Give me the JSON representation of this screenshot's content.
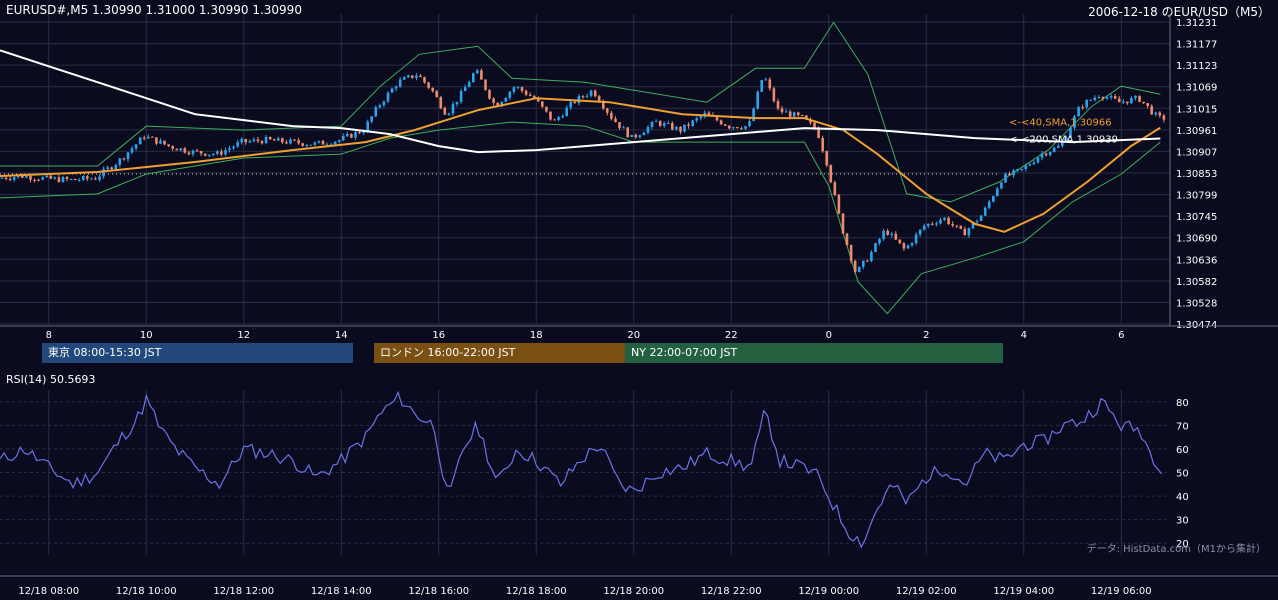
{
  "header": {
    "symbol_line": "EURUSD#,M5 1.30990 1.31000 1.30990 1.30990",
    "date_pair": "2006-12-18 のEUR/USD（M5）"
  },
  "sessions": [
    {
      "label": "東京 08:00-15:30 JST"
    },
    {
      "label": "ロンドン 16:00-22:00 JST"
    },
    {
      "label": "NY 22:00-07:00 JST"
    }
  ],
  "rsi_panel": {
    "label": "RSI(14) 50.5693"
  },
  "credit": "データ: HistData.com（M1から集計）",
  "colors": {
    "background": "#0a0b1e",
    "bull": "#2aa3f0",
    "bear": "#ef8a6c",
    "sma40": "#f0a030",
    "sma200": "#ffffff",
    "bollinger": "#3fae5a",
    "rsi": "#6b73e8",
    "grid": "#2a2d45"
  },
  "chart_data": [
    {
      "type": "candlestick",
      "title": "",
      "y_ticks": [
        "1.31231",
        "1.31177",
        "1.31123",
        "1.31069",
        "1.31015",
        "1.30961",
        "1.30907",
        "1.30853",
        "1.30799",
        "1.30745",
        "1.30690",
        "1.30636",
        "1.30582",
        "1.30528",
        "1.30474"
      ],
      "ylim": [
        1.30474,
        1.31231
      ],
      "x_ticks": [
        "8",
        "10",
        "12",
        "14",
        "16",
        "18",
        "20",
        "22",
        "0",
        "2",
        "4",
        "6"
      ],
      "x_tick_hours": [
        8,
        10,
        12,
        14,
        16,
        18,
        20,
        22,
        24,
        26,
        28,
        30
      ],
      "x_range_hours": [
        7.0,
        31.0
      ],
      "reference_level": 1.3085,
      "close_path": [
        {
          "h": 7.0,
          "v": 1.3084
        },
        {
          "h": 7.5,
          "v": 1.30845
        },
        {
          "h": 8.0,
          "v": 1.30838
        },
        {
          "h": 8.5,
          "v": 1.30835
        },
        {
          "h": 9.0,
          "v": 1.3084
        },
        {
          "h": 9.5,
          "v": 1.30885
        },
        {
          "h": 10.0,
          "v": 1.30945
        },
        {
          "h": 10.5,
          "v": 1.3092
        },
        {
          "h": 11.0,
          "v": 1.30905
        },
        {
          "h": 11.5,
          "v": 1.309
        },
        {
          "h": 12.0,
          "v": 1.3093
        },
        {
          "h": 12.5,
          "v": 1.30935
        },
        {
          "h": 13.0,
          "v": 1.3093
        },
        {
          "h": 13.5,
          "v": 1.30925
        },
        {
          "h": 14.0,
          "v": 1.30935
        },
        {
          "h": 14.5,
          "v": 1.3096
        },
        {
          "h": 14.8,
          "v": 1.3102
        },
        {
          "h": 15.2,
          "v": 1.3108
        },
        {
          "h": 15.6,
          "v": 1.311
        },
        {
          "h": 15.9,
          "v": 1.3106
        },
        {
          "h": 16.2,
          "v": 1.31
        },
        {
          "h": 16.5,
          "v": 1.3105
        },
        {
          "h": 16.8,
          "v": 1.3111
        },
        {
          "h": 17.2,
          "v": 1.3102
        },
        {
          "h": 17.6,
          "v": 1.3107
        },
        {
          "h": 18.0,
          "v": 1.3104
        },
        {
          "h": 18.4,
          "v": 1.3098
        },
        {
          "h": 18.8,
          "v": 1.3103
        },
        {
          "h": 19.2,
          "v": 1.3106
        },
        {
          "h": 19.6,
          "v": 1.3099
        },
        {
          "h": 20.0,
          "v": 1.3094
        },
        {
          "h": 20.5,
          "v": 1.3098
        },
        {
          "h": 21.0,
          "v": 1.3096
        },
        {
          "h": 21.5,
          "v": 1.31
        },
        {
          "h": 22.0,
          "v": 1.3097
        },
        {
          "h": 22.4,
          "v": 1.3097
        },
        {
          "h": 22.7,
          "v": 1.311
        },
        {
          "h": 23.0,
          "v": 1.3101
        },
        {
          "h": 23.5,
          "v": 1.3099
        },
        {
          "h": 23.8,
          "v": 1.3096
        },
        {
          "h": 24.0,
          "v": 1.3088
        },
        {
          "h": 24.3,
          "v": 1.3072
        },
        {
          "h": 24.6,
          "v": 1.306
        },
        {
          "h": 24.9,
          "v": 1.3065
        },
        {
          "h": 25.2,
          "v": 1.3071
        },
        {
          "h": 25.6,
          "v": 1.3066
        },
        {
          "h": 26.0,
          "v": 1.3072
        },
        {
          "h": 26.4,
          "v": 1.3074
        },
        {
          "h": 26.8,
          "v": 1.307
        },
        {
          "h": 27.2,
          "v": 1.3075
        },
        {
          "h": 27.6,
          "v": 1.3084
        },
        {
          "h": 28.0,
          "v": 1.3086
        },
        {
          "h": 28.4,
          "v": 1.309
        },
        {
          "h": 28.8,
          "v": 1.3092
        },
        {
          "h": 29.2,
          "v": 1.3102
        },
        {
          "h": 29.6,
          "v": 1.3105
        },
        {
          "h": 30.0,
          "v": 1.3103
        },
        {
          "h": 30.4,
          "v": 1.3104
        },
        {
          "h": 30.8,
          "v": 1.3099
        }
      ],
      "series": [
        {
          "name": "<-<40,SMA,1.30966",
          "points": [
            {
              "h": 7.0,
              "v": 1.30845
            },
            {
              "h": 9.0,
              "v": 1.30855
            },
            {
              "h": 11.0,
              "v": 1.3088
            },
            {
              "h": 13.0,
              "v": 1.3091
            },
            {
              "h": 14.5,
              "v": 1.3093
            },
            {
              "h": 15.5,
              "v": 1.3096
            },
            {
              "h": 16.8,
              "v": 1.3101
            },
            {
              "h": 18.0,
              "v": 1.3104
            },
            {
              "h": 19.5,
              "v": 1.3103
            },
            {
              "h": 21.0,
              "v": 1.31
            },
            {
              "h": 22.5,
              "v": 1.3099
            },
            {
              "h": 23.5,
              "v": 1.3099
            },
            {
              "h": 24.3,
              "v": 1.3096
            },
            {
              "h": 25.0,
              "v": 1.309
            },
            {
              "h": 26.0,
              "v": 1.308
            },
            {
              "h": 27.0,
              "v": 1.30725
            },
            {
              "h": 27.6,
              "v": 1.30705
            },
            {
              "h": 28.4,
              "v": 1.3075
            },
            {
              "h": 29.3,
              "v": 1.3083
            },
            {
              "h": 30.2,
              "v": 1.3092
            },
            {
              "h": 30.8,
              "v": 1.30966
            }
          ]
        },
        {
          "name": "<-<200,SMA,1.30939",
          "points": [
            {
              "h": 7.0,
              "v": 1.3116
            },
            {
              "h": 8.0,
              "v": 1.3112
            },
            {
              "h": 9.0,
              "v": 1.3108
            },
            {
              "h": 10.0,
              "v": 1.3104
            },
            {
              "h": 11.0,
              "v": 1.31
            },
            {
              "h": 12.0,
              "v": 1.30985
            },
            {
              "h": 13.0,
              "v": 1.3097
            },
            {
              "h": 14.0,
              "v": 1.30965
            },
            {
              "h": 15.0,
              "v": 1.3095
            },
            {
              "h": 16.0,
              "v": 1.3092
            },
            {
              "h": 16.8,
              "v": 1.30905
            },
            {
              "h": 18.0,
              "v": 1.3091
            },
            {
              "h": 20.0,
              "v": 1.3093
            },
            {
              "h": 22.0,
              "v": 1.3095
            },
            {
              "h": 23.5,
              "v": 1.30965
            },
            {
              "h": 25.0,
              "v": 1.3096
            },
            {
              "h": 27.0,
              "v": 1.3094
            },
            {
              "h": 29.0,
              "v": 1.3093
            },
            {
              "h": 30.8,
              "v": 1.30939
            }
          ]
        },
        {
          "name": "",
          "points": [
            {
              "h": 7.0,
              "v": 1.3087
            },
            {
              "h": 9.0,
              "v": 1.3087
            },
            {
              "h": 10.0,
              "v": 1.3097
            },
            {
              "h": 12.0,
              "v": 1.3096
            },
            {
              "h": 14.0,
              "v": 1.3097
            },
            {
              "h": 14.8,
              "v": 1.3107
            },
            {
              "h": 15.6,
              "v": 1.3115
            },
            {
              "h": 16.8,
              "v": 1.3117
            },
            {
              "h": 17.5,
              "v": 1.3109
            },
            {
              "h": 19.0,
              "v": 1.3108
            },
            {
              "h": 20.0,
              "v": 1.3106
            },
            {
              "h": 21.5,
              "v": 1.3103
            },
            {
              "h": 22.5,
              "v": 1.31115
            },
            {
              "h": 23.5,
              "v": 1.31115
            },
            {
              "h": 24.1,
              "v": 1.3123
            },
            {
              "h": 24.8,
              "v": 1.311
            },
            {
              "h": 25.6,
              "v": 1.308
            },
            {
              "h": 26.5,
              "v": 1.3078
            },
            {
              "h": 27.5,
              "v": 1.3083
            },
            {
              "h": 28.5,
              "v": 1.3091
            },
            {
              "h": 29.4,
              "v": 1.3102
            },
            {
              "h": 30.0,
              "v": 1.3107
            },
            {
              "h": 30.8,
              "v": 1.3105
            }
          ]
        },
        {
          "name": "",
          "points": [
            {
              "h": 7.0,
              "v": 1.3079
            },
            {
              "h": 9.0,
              "v": 1.308
            },
            {
              "h": 10.0,
              "v": 1.3085
            },
            {
              "h": 12.0,
              "v": 1.3089
            },
            {
              "h": 14.0,
              "v": 1.309
            },
            {
              "h": 15.0,
              "v": 1.3094
            },
            {
              "h": 16.0,
              "v": 1.3096
            },
            {
              "h": 17.5,
              "v": 1.3098
            },
            {
              "h": 19.0,
              "v": 1.3097
            },
            {
              "h": 20.0,
              "v": 1.3093
            },
            {
              "h": 21.5,
              "v": 1.3093
            },
            {
              "h": 22.5,
              "v": 1.3093
            },
            {
              "h": 23.5,
              "v": 1.3093
            },
            {
              "h": 24.0,
              "v": 1.3082
            },
            {
              "h": 24.6,
              "v": 1.3058
            },
            {
              "h": 25.2,
              "v": 1.305
            },
            {
              "h": 25.9,
              "v": 1.306
            },
            {
              "h": 27.0,
              "v": 1.3064
            },
            {
              "h": 28.0,
              "v": 1.3068
            },
            {
              "h": 29.0,
              "v": 1.3078
            },
            {
              "h": 30.0,
              "v": 1.3085
            },
            {
              "h": 30.8,
              "v": 1.3093
            }
          ]
        }
      ]
    },
    {
      "type": "line",
      "title": "",
      "y_ticks": [
        "80",
        "70",
        "60",
        "50",
        "40",
        "30",
        "20"
      ],
      "ylim": [
        15,
        85
      ],
      "rsi_path": [
        {
          "h": 7.0,
          "v": 55
        },
        {
          "h": 7.5,
          "v": 60
        },
        {
          "h": 8.0,
          "v": 52
        },
        {
          "h": 8.5,
          "v": 45
        },
        {
          "h": 9.0,
          "v": 50
        },
        {
          "h": 9.5,
          "v": 65
        },
        {
          "h": 9.8,
          "v": 72
        },
        {
          "h": 10.0,
          "v": 81
        },
        {
          "h": 10.3,
          "v": 68
        },
        {
          "h": 10.6,
          "v": 60
        },
        {
          "h": 11.0,
          "v": 52
        },
        {
          "h": 11.5,
          "v": 45
        },
        {
          "h": 12.0,
          "v": 60
        },
        {
          "h": 12.5,
          "v": 58
        },
        {
          "h": 13.0,
          "v": 55
        },
        {
          "h": 13.5,
          "v": 48
        },
        {
          "h": 14.0,
          "v": 55
        },
        {
          "h": 14.5,
          "v": 65
        },
        {
          "h": 14.8,
          "v": 75
        },
        {
          "h": 15.2,
          "v": 82
        },
        {
          "h": 15.5,
          "v": 75
        },
        {
          "h": 15.9,
          "v": 70
        },
        {
          "h": 16.2,
          "v": 38
        },
        {
          "h": 16.5,
          "v": 60
        },
        {
          "h": 16.8,
          "v": 70
        },
        {
          "h": 17.2,
          "v": 45
        },
        {
          "h": 17.6,
          "v": 60
        },
        {
          "h": 18.0,
          "v": 55
        },
        {
          "h": 18.5,
          "v": 45
        },
        {
          "h": 18.9,
          "v": 55
        },
        {
          "h": 19.3,
          "v": 62
        },
        {
          "h": 19.7,
          "v": 45
        },
        {
          "h": 20.0,
          "v": 42
        },
        {
          "h": 20.5,
          "v": 50
        },
        {
          "h": 21.0,
          "v": 52
        },
        {
          "h": 21.5,
          "v": 58
        },
        {
          "h": 22.0,
          "v": 55
        },
        {
          "h": 22.4,
          "v": 52
        },
        {
          "h": 22.7,
          "v": 76
        },
        {
          "h": 23.0,
          "v": 55
        },
        {
          "h": 23.5,
          "v": 52
        },
        {
          "h": 23.8,
          "v": 48
        },
        {
          "h": 24.1,
          "v": 36
        },
        {
          "h": 24.4,
          "v": 25
        },
        {
          "h": 24.7,
          "v": 20
        },
        {
          "h": 25.0,
          "v": 35
        },
        {
          "h": 25.3,
          "v": 45
        },
        {
          "h": 25.6,
          "v": 37
        },
        {
          "h": 26.0,
          "v": 48
        },
        {
          "h": 26.4,
          "v": 52
        },
        {
          "h": 26.8,
          "v": 45
        },
        {
          "h": 27.2,
          "v": 58
        },
        {
          "h": 27.6,
          "v": 55
        },
        {
          "h": 28.0,
          "v": 62
        },
        {
          "h": 28.4,
          "v": 63
        },
        {
          "h": 28.8,
          "v": 70
        },
        {
          "h": 29.2,
          "v": 72
        },
        {
          "h": 29.6,
          "v": 80
        },
        {
          "h": 30.0,
          "v": 70
        },
        {
          "h": 30.4,
          "v": 68
        },
        {
          "h": 30.6,
          "v": 58
        },
        {
          "h": 30.9,
          "v": 50.5693
        }
      ]
    }
  ],
  "time_axis": {
    "labels": [
      "12/18 08:00",
      "12/18 10:00",
      "12/18 12:00",
      "12/18 14:00",
      "12/18 16:00",
      "12/18 18:00",
      "12/18 20:00",
      "12/18 22:00",
      "12/19 00:00",
      "12/19 02:00",
      "12/19 04:00",
      "12/19 06:00"
    ]
  }
}
